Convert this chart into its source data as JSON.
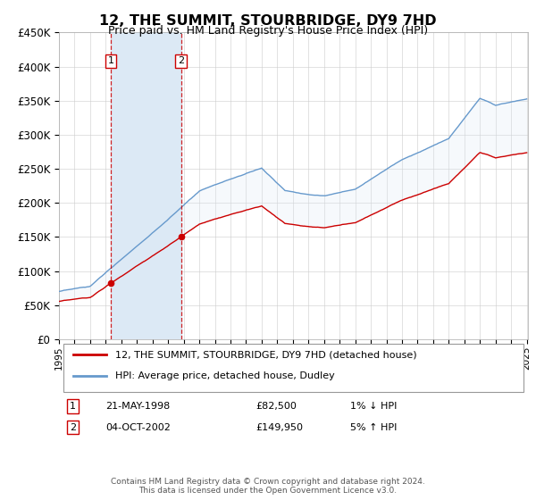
{
  "title": "12, THE SUMMIT, STOURBRIDGE, DY9 7HD",
  "subtitle": "Price paid vs. HM Land Registry's House Price Index (HPI)",
  "ylim": [
    0,
    450000
  ],
  "yticks": [
    0,
    50000,
    100000,
    150000,
    200000,
    250000,
    300000,
    350000,
    400000,
    450000
  ],
  "ytick_labels": [
    "£0",
    "£50K",
    "£100K",
    "£150K",
    "£200K",
    "£250K",
    "£300K",
    "£350K",
    "£400K",
    "£450K"
  ],
  "purchase1_year": 1998,
  "purchase1_month": 5,
  "purchase1_price": 82500,
  "purchase2_year": 2002,
  "purchase2_month": 10,
  "purchase2_price": 149950,
  "line_color_property": "#cc0000",
  "line_color_hpi": "#6699cc",
  "shade_color": "#dce9f5",
  "legend_property": "12, THE SUMMIT, STOURBRIDGE, DY9 7HD (detached house)",
  "legend_hpi": "HPI: Average price, detached house, Dudley",
  "annotation1_date": "21-MAY-1998",
  "annotation1_price": "£82,500",
  "annotation1_hpi": "1% ↓ HPI",
  "annotation2_date": "04-OCT-2002",
  "annotation2_price": "£149,950",
  "annotation2_hpi": "5% ↑ HPI",
  "footer": "Contains HM Land Registry data © Crown copyright and database right 2024.\nThis data is licensed under the Open Government Licence v3.0.",
  "background_color": "#ffffff",
  "grid_color": "#cccccc"
}
